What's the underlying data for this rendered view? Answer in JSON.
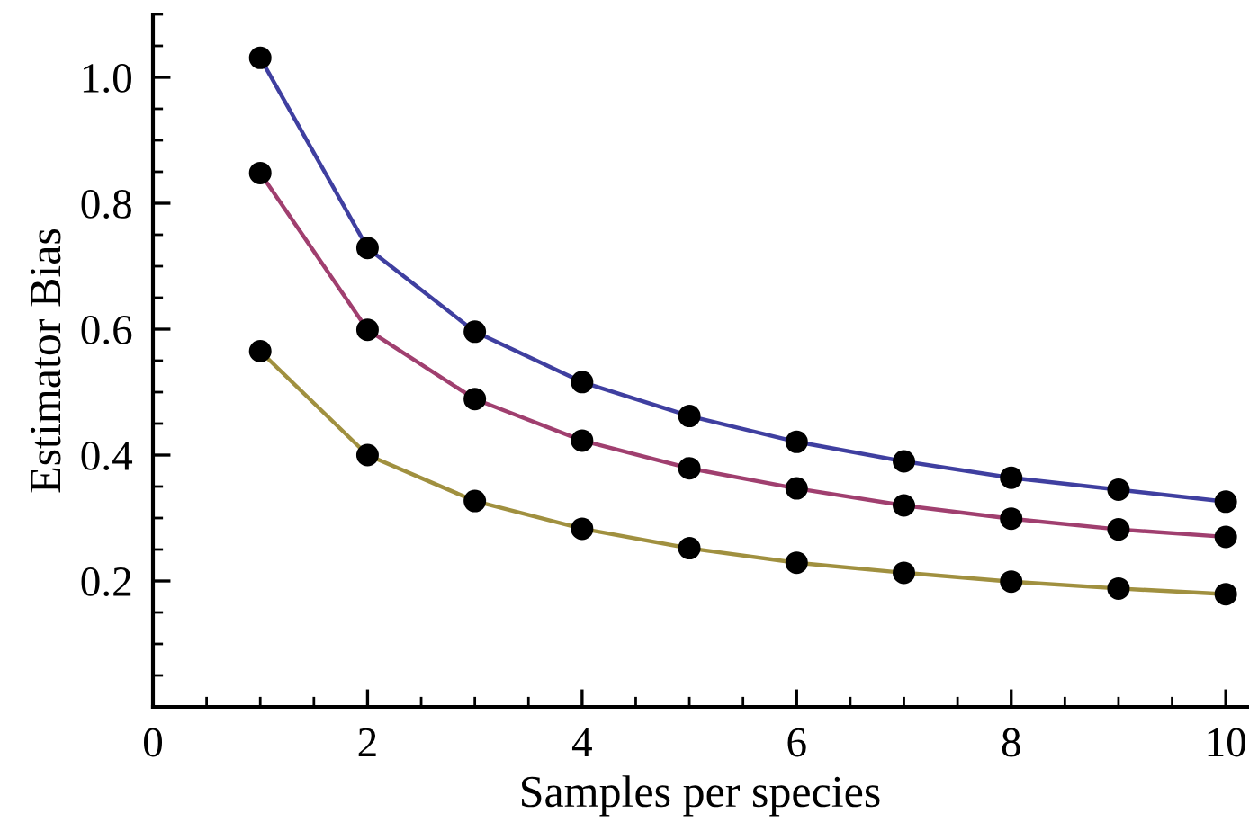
{
  "chart_data": {
    "type": "line",
    "xlabel": "Samples per species",
    "ylabel": "Estimator Bias",
    "x": [
      1,
      2,
      3,
      4,
      5,
      6,
      7,
      8,
      9,
      10
    ],
    "series": [
      {
        "color": "#3f3fa0",
        "values": [
          1.031,
          0.729,
          0.596,
          0.516,
          0.462,
          0.421,
          0.39,
          0.364,
          0.345,
          0.326
        ]
      },
      {
        "color": "#a03f6f",
        "values": [
          0.848,
          0.599,
          0.489,
          0.423,
          0.379,
          0.347,
          0.32,
          0.299,
          0.282,
          0.27
        ]
      },
      {
        "color": "#a0903f",
        "values": [
          0.565,
          0.4,
          0.327,
          0.283,
          0.252,
          0.229,
          0.213,
          0.199,
          0.188,
          0.179
        ]
      }
    ],
    "xlim": [
      0,
      10.2
    ],
    "ylim": [
      0,
      1.1
    ],
    "xticks": [
      0,
      2,
      4,
      6,
      8,
      10
    ],
    "yticks": [
      0.2,
      0.4,
      0.6,
      0.8,
      {
        "value": 1.0,
        "label": "1.0"
      }
    ],
    "marker": "circle",
    "line_style": "solid",
    "grid": false,
    "legend": false
  }
}
